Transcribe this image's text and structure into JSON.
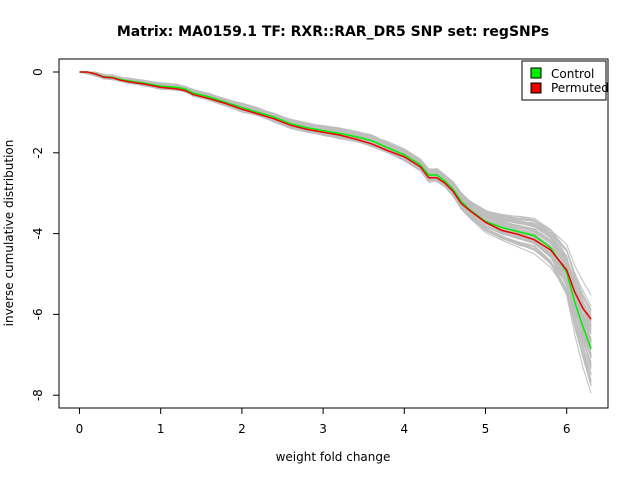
{
  "chart_data": {
    "type": "line",
    "title": "Matrix: MA0159.1 TF: RXR::RAR_DR5 SNP set: regSNPs",
    "xlabel": "weight fold change",
    "ylabel": "inverse cumulative distribution",
    "xlim": [
      0,
      6.3
    ],
    "ylim": [
      -8,
      0
    ],
    "xticks": [
      0,
      1,
      2,
      3,
      4,
      5,
      6
    ],
    "yticks": [
      0,
      -2,
      -4,
      -6,
      -8
    ],
    "grid": false,
    "legend_position": "top-right",
    "background_curves": {
      "count": 60,
      "color": "#bebebe",
      "description_hidden": true
    },
    "series": [
      {
        "name": "Control",
        "color": "#00ee00",
        "x": [
          0.0,
          0.1,
          0.2,
          0.3,
          0.4,
          0.5,
          0.6,
          0.8,
          1.0,
          1.2,
          1.3,
          1.4,
          1.6,
          1.8,
          2.0,
          2.2,
          2.4,
          2.6,
          2.8,
          3.0,
          3.2,
          3.4,
          3.6,
          3.8,
          4.0,
          4.2,
          4.3,
          4.4,
          4.5,
          4.6,
          4.7,
          4.8,
          5.0,
          5.2,
          5.4,
          5.6,
          5.8,
          6.0,
          6.1,
          6.2,
          6.3
        ],
        "y": [
          0.0,
          0.0,
          -0.05,
          -0.12,
          -0.13,
          -0.18,
          -0.22,
          -0.28,
          -0.35,
          -0.38,
          -0.42,
          -0.52,
          -0.62,
          -0.75,
          -0.88,
          -1.0,
          -1.12,
          -1.28,
          -1.38,
          -1.45,
          -1.52,
          -1.6,
          -1.7,
          -1.88,
          -2.05,
          -2.3,
          -2.55,
          -2.55,
          -2.7,
          -2.9,
          -3.2,
          -3.4,
          -3.7,
          -3.85,
          -3.95,
          -4.05,
          -4.35,
          -4.95,
          -5.7,
          -6.3,
          -6.85
        ]
      },
      {
        "name": "Permuted",
        "color": "#ee0000",
        "x": [
          0.0,
          0.1,
          0.2,
          0.3,
          0.4,
          0.5,
          0.6,
          0.8,
          1.0,
          1.2,
          1.3,
          1.4,
          1.6,
          1.8,
          2.0,
          2.2,
          2.4,
          2.6,
          2.8,
          3.0,
          3.2,
          3.4,
          3.6,
          3.8,
          4.0,
          4.2,
          4.3,
          4.4,
          4.5,
          4.6,
          4.7,
          4.8,
          5.0,
          5.2,
          5.4,
          5.6,
          5.8,
          6.0,
          6.1,
          6.2,
          6.3
        ],
        "y": [
          0.0,
          0.0,
          -0.05,
          -0.13,
          -0.14,
          -0.2,
          -0.24,
          -0.3,
          -0.38,
          -0.42,
          -0.46,
          -0.56,
          -0.66,
          -0.78,
          -0.92,
          -1.04,
          -1.16,
          -1.32,
          -1.42,
          -1.49,
          -1.56,
          -1.66,
          -1.78,
          -1.95,
          -2.1,
          -2.35,
          -2.62,
          -2.62,
          -2.75,
          -2.95,
          -3.25,
          -3.42,
          -3.72,
          -3.92,
          -4.02,
          -4.15,
          -4.4,
          -4.9,
          -5.45,
          -5.85,
          -6.12
        ]
      }
    ]
  }
}
